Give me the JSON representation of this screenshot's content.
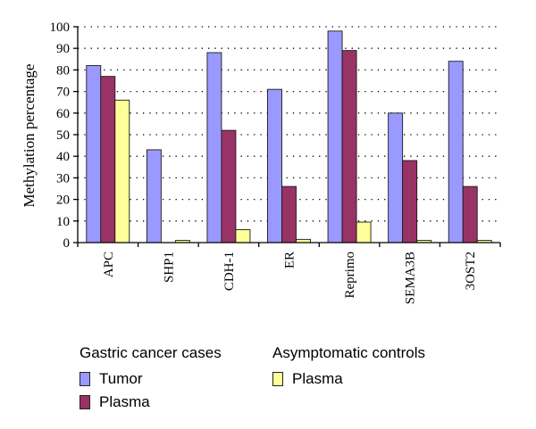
{
  "chart_data": {
    "type": "bar",
    "title": "",
    "xlabel": "",
    "ylabel": "Methylation percentage",
    "ylim": [
      0,
      100
    ],
    "yticks": [
      0,
      10,
      20,
      30,
      40,
      50,
      60,
      70,
      80,
      90,
      100
    ],
    "grid": true,
    "categories": [
      "APC",
      "SHP1",
      "CDH-1",
      "ER",
      "Reprimo",
      "SEMA3B",
      "3OST2"
    ],
    "series": [
      {
        "name": "Tumor",
        "group": "Gastric cancer cases",
        "color": "#9999ff",
        "values": [
          82,
          43,
          88,
          71,
          98,
          60,
          84
        ]
      },
      {
        "name": "Plasma",
        "group": "Gastric cancer cases",
        "color": "#993366",
        "values": [
          77,
          0,
          52,
          26,
          89,
          38,
          26
        ]
      },
      {
        "name": "Plasma",
        "group": "Asymptomatic controls",
        "color": "#ffff99",
        "values": [
          66,
          1,
          6,
          1.5,
          9.5,
          1,
          1
        ]
      }
    ]
  },
  "legend": {
    "group_cases": "Gastric cancer cases",
    "group_controls": "Asymptomatic controls",
    "item_tumor": "Tumor",
    "item_plasma": "Plasma",
    "item_controls_plasma": "Plasma"
  }
}
